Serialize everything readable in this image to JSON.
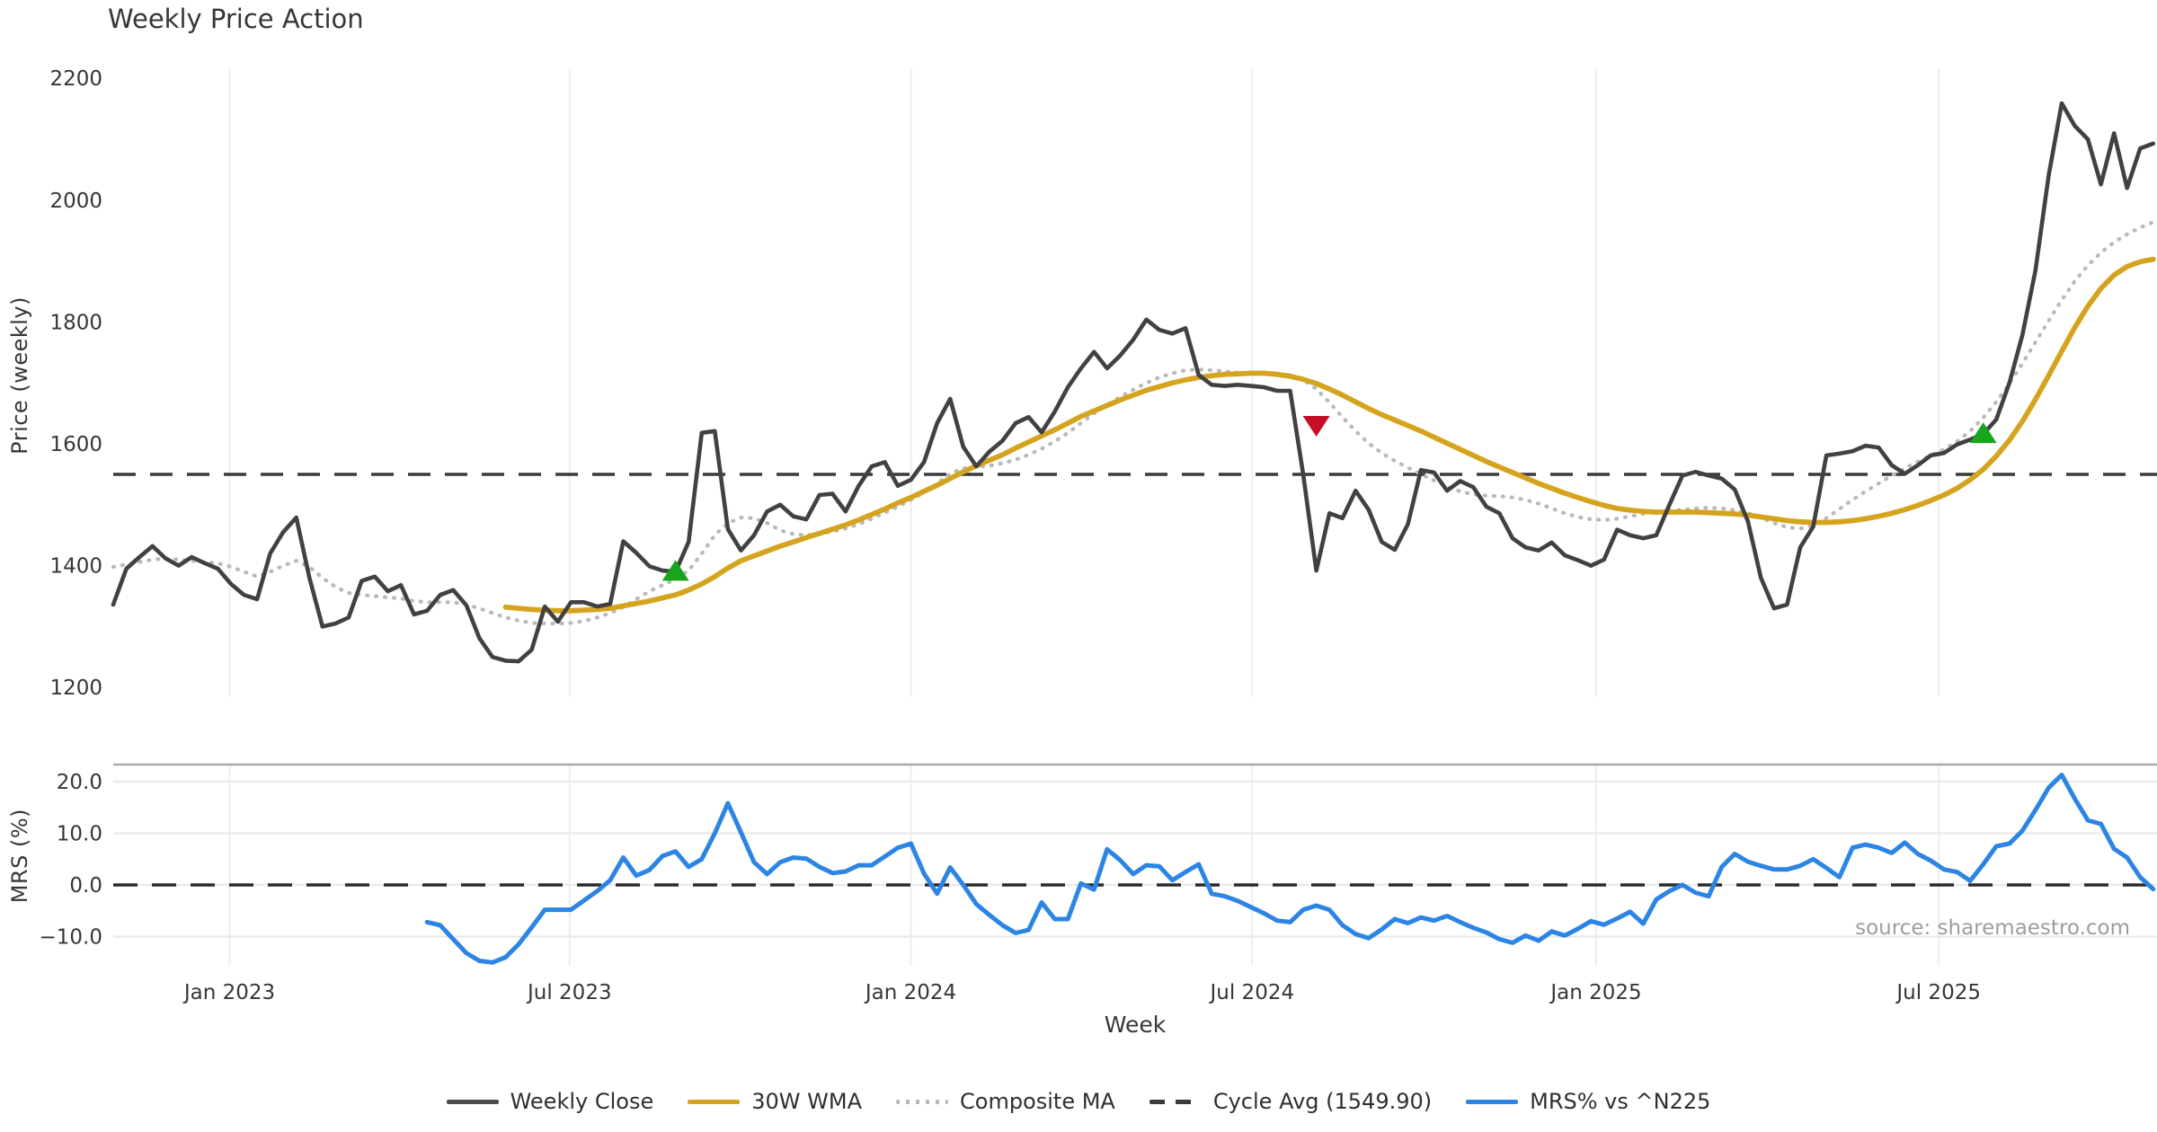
{
  "chart": {
    "title": "Weekly Price Action",
    "price_axis_label": "Price (weekly)",
    "mrs_axis_label": "MRS (%)",
    "x_axis_label": "Week",
    "source_text": "source: sharemaestro.com"
  },
  "colors": {
    "close": "#414141",
    "wma": "#d5a41f",
    "composite": "#b9b9b9",
    "cycle": "#3a3a3a",
    "mrs": "#2c84e4",
    "buy": "#18a51b",
    "sell": "#c60f27",
    "grid": "#efefef",
    "spine": "#ababab",
    "text": "#363636"
  },
  "legend": {
    "items": [
      {
        "label": "Weekly Close",
        "color": "#4d4d4d",
        "style": "solid"
      },
      {
        "label": "30W WMA",
        "color": "#d5a41f",
        "style": "solid"
      },
      {
        "label": "Composite MA",
        "color": "#b9b9b9",
        "style": "dotted"
      },
      {
        "label": "Cycle Avg (1549.90)",
        "color": "#3a3a3a",
        "style": "dashed"
      },
      {
        "label": "MRS% vs ^N225",
        "color": "#2c84e4",
        "style": "solid"
      }
    ]
  },
  "chart_data": {
    "type": "line",
    "title": "Weekly Price Action",
    "xlabel": "Week",
    "ylabel_top": "Price (weekly)",
    "ylabel_bottom": "MRS (%)",
    "legend_position": "bottom-center",
    "grid": "vertical-both-panels, horizontal-bottom-panel",
    "cycle_avg": 1549.9,
    "total_weeks": 157,
    "x_ticks": [
      {
        "week": 8.9,
        "label": "Jan 2023"
      },
      {
        "week": 34.9,
        "label": "Jul 2023"
      },
      {
        "week": 61.0,
        "label": "Jan 2024"
      },
      {
        "week": 87.1,
        "label": "Jul 2024"
      },
      {
        "week": 113.4,
        "label": "Jan 2025"
      },
      {
        "week": 139.6,
        "label": "Jul 2025"
      }
    ],
    "price_axis": {
      "range": [
        1150,
        2230
      ],
      "ticks": [
        {
          "v": 2200,
          "label": "2200"
        },
        {
          "v": 2000,
          "label": "2000"
        },
        {
          "v": 1800,
          "label": "1800"
        },
        {
          "v": 1600,
          "label": "1600"
        },
        {
          "v": 1400,
          "label": "1400"
        },
        {
          "v": 1200,
          "label": "1200"
        }
      ]
    },
    "mrs_axis": {
      "range": [
        -17,
        23
      ],
      "ticks": [
        {
          "v": 20,
          "label": "20.0"
        },
        {
          "v": 10,
          "label": "10.0"
        },
        {
          "v": 0,
          "label": "0.0"
        },
        {
          "v": -10,
          "label": "−10.0"
        }
      ]
    },
    "series": {
      "weekly_close": {
        "name": "Weekly Close",
        "start_week": 0,
        "values": [
          1336,
          1395,
          1414,
          1432,
          1412,
          1400,
          1414,
          1404,
          1395,
          1370,
          1352,
          1345,
          1420,
          1455,
          1479,
          1380,
          1300,
          1305,
          1315,
          1375,
          1382,
          1358,
          1368,
          1320,
          1326,
          1352,
          1360,
          1335,
          1281,
          1250,
          1244,
          1243,
          1262,
          1333,
          1308,
          1340,
          1340,
          1333,
          1337,
          1440,
          1421,
          1399,
          1392,
          1390,
          1439,
          1618,
          1621,
          1460,
          1425,
          1450,
          1489,
          1500,
          1481,
          1476,
          1516,
          1518,
          1489,
          1531,
          1563,
          1570,
          1531,
          1541,
          1570,
          1634,
          1674,
          1595,
          1563,
          1587,
          1605,
          1634,
          1644,
          1619,
          1653,
          1693,
          1724,
          1751,
          1724,
          1745,
          1771,
          1804,
          1787,
          1781,
          1790,
          1713,
          1697,
          1695,
          1697,
          1695,
          1693,
          1687,
          1687,
          1550,
          1392,
          1486,
          1478,
          1523,
          1492,
          1439,
          1426,
          1468,
          1557,
          1553,
          1523,
          1539,
          1529,
          1497,
          1486,
          1445,
          1430,
          1425,
          1438,
          1417,
          1409,
          1400,
          1410,
          1459,
          1450,
          1445,
          1450,
          1500,
          1548,
          1554,
          1548,
          1543,
          1525,
          1473,
          1380,
          1330,
          1336,
          1430,
          1464,
          1581,
          1584,
          1588,
          1597,
          1594,
          1565,
          1551,
          1565,
          1581,
          1585,
          1599,
          1607,
          1616,
          1640,
          1700,
          1779,
          1885,
          2040,
          2159,
          2122,
          2100,
          2026,
          2110,
          2020,
          2085,
          2093
        ]
      },
      "wma_30w": {
        "name": "30W WMA",
        "start_week": 30,
        "values": [
          1332,
          1330,
          1328,
          1327,
          1326,
          1326,
          1327,
          1328,
          1330,
          1334,
          1338,
          1342,
          1347,
          1352,
          1360,
          1370,
          1382,
          1396,
          1408,
          1416,
          1424,
          1432,
          1439,
          1446,
          1453,
          1460,
          1467,
          1475,
          1484,
          1493,
          1503,
          1512,
          1522,
          1532,
          1543,
          1554,
          1564,
          1573,
          1582,
          1593,
          1603,
          1613,
          1623,
          1634,
          1645,
          1654,
          1663,
          1672,
          1680,
          1688,
          1694,
          1700,
          1705,
          1709,
          1712,
          1714,
          1715,
          1716,
          1716,
          1714,
          1711,
          1706,
          1699,
          1690,
          1680,
          1669,
          1658,
          1648,
          1639,
          1630,
          1621,
          1611,
          1601,
          1591,
          1581,
          1571,
          1562,
          1553,
          1544,
          1535,
          1527,
          1519,
          1512,
          1505,
          1499,
          1494,
          1491,
          1489,
          1488,
          1488,
          1488,
          1488,
          1487,
          1486,
          1485,
          1483,
          1480,
          1477,
          1474,
          1472,
          1471,
          1471,
          1472,
          1474,
          1477,
          1481,
          1486,
          1492,
          1499,
          1507,
          1516,
          1527,
          1541,
          1558,
          1580,
          1606,
          1637,
          1673,
          1712,
          1752,
          1791,
          1826,
          1855,
          1877,
          1891,
          1899,
          1903
        ]
      },
      "composite_ma": {
        "name": "Composite MA",
        "start_week": 0,
        "values": [
          1398,
          1402,
          1406,
          1410,
          1412,
          1410,
          1408,
          1406,
          1404,
          1398,
          1390,
          1382,
          1390,
          1400,
          1408,
          1398,
          1380,
          1365,
          1355,
          1352,
          1350,
          1348,
          1346,
          1342,
          1340,
          1340,
          1340,
          1336,
          1330,
          1322,
          1315,
          1310,
          1306,
          1305,
          1305,
          1306,
          1309,
          1315,
          1322,
          1332,
          1345,
          1358,
          1368,
          1378,
          1392,
          1420,
          1450,
          1470,
          1479,
          1478,
          1470,
          1458,
          1452,
          1450,
          1452,
          1456,
          1461,
          1468,
          1477,
          1487,
          1497,
          1508,
          1520,
          1535,
          1551,
          1560,
          1562,
          1564,
          1568,
          1574,
          1582,
          1592,
          1604,
          1618,
          1634,
          1650,
          1664,
          1677,
          1689,
          1700,
          1709,
          1716,
          1721,
          1722,
          1721,
          1719,
          1717,
          1716,
          1716,
          1715,
          1712,
          1705,
          1690,
          1668,
          1644,
          1621,
          1601,
          1585,
          1572,
          1561,
          1550,
          1540,
          1530,
          1522,
          1517,
          1515,
          1514,
          1512,
          1508,
          1502,
          1494,
          1486,
          1480,
          1476,
          1475,
          1477,
          1481,
          1485,
          1488,
          1490,
          1492,
          1494,
          1495,
          1494,
          1491,
          1486,
          1479,
          1470,
          1463,
          1461,
          1466,
          1478,
          1493,
          1508,
          1522,
          1535,
          1548,
          1560,
          1571,
          1581,
          1591,
          1604,
          1621,
          1643,
          1669,
          1699,
          1732,
          1767,
          1802,
          1836,
          1867,
          1893,
          1914,
          1931,
          1944,
          1955,
          1964
        ]
      },
      "mrs_pct": {
        "name": "MRS% vs ^N225",
        "start_week": 24,
        "values": [
          -7.2,
          -7.8,
          -10.5,
          -13.2,
          -14.7,
          -15.0,
          -14.0,
          -11.5,
          -8.2,
          -4.8,
          -4.8,
          -4.8,
          -3.0,
          -1.2,
          0.9,
          5.3,
          1.8,
          2.9,
          5.6,
          6.5,
          3.5,
          5.0,
          10.0,
          15.8,
          10.2,
          4.4,
          2.1,
          4.4,
          5.3,
          5.1,
          3.5,
          2.3,
          2.6,
          3.8,
          3.8,
          5.5,
          7.2,
          8.0,
          2.2,
          -1.7,
          3.4,
          0.0,
          -3.7,
          -5.8,
          -7.8,
          -9.3,
          -8.7,
          -3.4,
          -6.6,
          -6.6,
          0.3,
          -0.9,
          6.9,
          4.8,
          2.1,
          3.8,
          3.6,
          0.9,
          2.5,
          4.0,
          -1.7,
          -2.2,
          -3.1,
          -4.3,
          -5.5,
          -6.9,
          -7.2,
          -4.8,
          -4.0,
          -4.8,
          -7.8,
          -9.5,
          -10.3,
          -8.6,
          -6.6,
          -7.4,
          -6.3,
          -6.9,
          -6.0,
          -7.2,
          -8.3,
          -9.2,
          -10.5,
          -11.2,
          -9.8,
          -10.8,
          -9.0,
          -9.8,
          -8.5,
          -7.0,
          -7.7,
          -6.5,
          -5.2,
          -7.5,
          -2.8,
          -1.2,
          0.0,
          -1.5,
          -2.2,
          3.5,
          6.0,
          4.5,
          3.7,
          3.0,
          3.0,
          3.7,
          5.0,
          3.3,
          1.5,
          7.2,
          7.8,
          7.2,
          6.2,
          8.2,
          6.0,
          4.7,
          3.0,
          2.5,
          0.8,
          4.0,
          7.5,
          8.0,
          10.5,
          14.5,
          18.8,
          21.3,
          16.7,
          12.5,
          11.8,
          7.0,
          5.3,
          1.5,
          -0.8
        ]
      }
    },
    "markers": [
      {
        "week": 43,
        "price": 1390,
        "dir": "up",
        "signal": "buy"
      },
      {
        "week": 92,
        "price": 1631,
        "dir": "down",
        "signal": "sell"
      },
      {
        "week": 143,
        "price": 1616,
        "dir": "up",
        "signal": "buy"
      }
    ]
  }
}
